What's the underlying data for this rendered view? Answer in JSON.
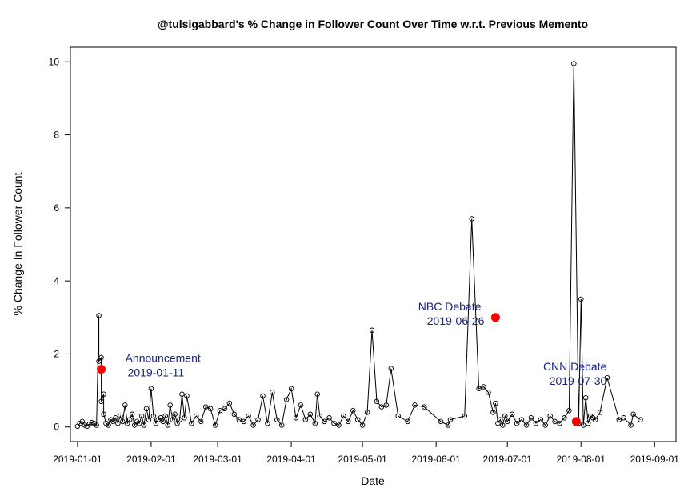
{
  "chart_data": {
    "type": "scatter",
    "title": "@tulsigabbard's % Change in Follower Count Over Time w.r.t. Previous Memento",
    "xlabel": "Date",
    "ylabel": "% Change In Follower Count",
    "x_ticks": [
      "2019-01-01",
      "2019-02-01",
      "2019-03-01",
      "2019-04-01",
      "2019-05-01",
      "2019-06-01",
      "2019-07-01",
      "2019-08-01",
      "2019-09-01"
    ],
    "y_ticks": [
      0,
      2,
      4,
      6,
      8,
      10
    ],
    "xlim": [
      "2018-12-29",
      "2019-09-10"
    ],
    "ylim": [
      -0.4,
      10.4
    ],
    "grid": false,
    "line_color": "#000000",
    "marker": "open-circle",
    "series": [
      {
        "x": [
          "2019-01-01",
          "2019-01-02",
          "2019-01-03",
          "2019-01-04",
          "2019-01-05",
          "2019-01-06",
          "2019-01-07",
          "2019-01-08",
          "2019-01-09",
          "2019-01-10",
          "2019-01-10",
          "2019-01-11",
          "2019-01-11",
          "2019-01-12",
          "2019-01-12",
          "2019-01-13",
          "2019-01-14",
          "2019-01-15",
          "2019-01-16",
          "2019-01-17",
          "2019-01-18",
          "2019-01-19",
          "2019-01-20",
          "2019-01-21",
          "2019-01-22",
          "2019-01-23",
          "2019-01-24",
          "2019-01-25",
          "2019-01-26",
          "2019-01-27",
          "2019-01-28",
          "2019-01-29",
          "2019-01-30",
          "2019-01-31",
          "2019-02-01",
          "2019-02-02",
          "2019-02-03",
          "2019-02-04",
          "2019-02-05",
          "2019-02-06",
          "2019-02-07",
          "2019-02-08",
          "2019-02-09",
          "2019-02-10",
          "2019-02-11",
          "2019-02-12",
          "2019-02-13",
          "2019-02-14",
          "2019-02-15",
          "2019-02-16",
          "2019-02-18",
          "2019-02-20",
          "2019-02-22",
          "2019-02-24",
          "2019-02-26",
          "2019-02-28",
          "2019-03-02",
          "2019-03-04",
          "2019-03-06",
          "2019-03-08",
          "2019-03-10",
          "2019-03-12",
          "2019-03-14",
          "2019-03-16",
          "2019-03-18",
          "2019-03-20",
          "2019-03-22",
          "2019-03-24",
          "2019-03-26",
          "2019-03-28",
          "2019-03-30",
          "2019-04-01",
          "2019-04-03",
          "2019-04-05",
          "2019-04-07",
          "2019-04-09",
          "2019-04-11",
          "2019-04-12",
          "2019-04-13",
          "2019-04-15",
          "2019-04-17",
          "2019-04-19",
          "2019-04-21",
          "2019-04-23",
          "2019-04-25",
          "2019-04-27",
          "2019-04-29",
          "2019-05-01",
          "2019-05-03",
          "2019-05-05",
          "2019-05-07",
          "2019-05-09",
          "2019-05-11",
          "2019-05-13",
          "2019-05-16",
          "2019-05-20",
          "2019-05-23",
          "2019-05-27",
          "2019-06-03",
          "2019-06-06",
          "2019-06-07",
          "2019-06-13",
          "2019-06-16",
          "2019-06-19",
          "2019-06-21",
          "2019-06-23",
          "2019-06-25",
          "2019-06-26",
          "2019-06-27",
          "2019-06-28",
          "2019-06-29",
          "2019-06-30",
          "2019-07-01",
          "2019-07-03",
          "2019-07-05",
          "2019-07-07",
          "2019-07-09",
          "2019-07-11",
          "2019-07-13",
          "2019-07-15",
          "2019-07-17",
          "2019-07-19",
          "2019-07-21",
          "2019-07-23",
          "2019-07-25",
          "2019-07-27",
          "2019-07-29",
          "2019-07-31",
          "2019-08-01",
          "2019-08-02",
          "2019-08-03",
          "2019-08-04",
          "2019-08-05",
          "2019-08-06",
          "2019-08-07",
          "2019-08-09",
          "2019-08-12",
          "2019-08-17",
          "2019-08-19",
          "2019-08-22",
          "2019-08-23",
          "2019-08-26"
        ],
        "y": [
          0.02,
          0.1,
          0.15,
          0.05,
          0.02,
          0.08,
          0.12,
          0.1,
          0.05,
          3.05,
          1.8,
          1.9,
          0.7,
          0.9,
          0.35,
          0.1,
          0.05,
          0.2,
          0.15,
          0.25,
          0.1,
          0.3,
          0.15,
          0.6,
          0.1,
          0.2,
          0.35,
          0.05,
          0.15,
          0.1,
          0.3,
          0.05,
          0.5,
          0.2,
          1.05,
          0.3,
          0.1,
          0.2,
          0.25,
          0.15,
          0.3,
          0.05,
          0.6,
          0.2,
          0.35,
          0.1,
          0.2,
          0.9,
          0.25,
          0.85,
          0.1,
          0.3,
          0.15,
          0.55,
          0.5,
          0.05,
          0.45,
          0.5,
          0.65,
          0.35,
          0.2,
          0.15,
          0.3,
          0.05,
          0.2,
          0.85,
          0.1,
          0.95,
          0.2,
          0.05,
          0.75,
          1.05,
          0.25,
          0.6,
          0.2,
          0.35,
          0.1,
          0.9,
          0.3,
          0.15,
          0.25,
          0.1,
          0.05,
          0.3,
          0.15,
          0.45,
          0.2,
          0.05,
          0.4,
          2.65,
          0.7,
          0.55,
          0.6,
          1.6,
          0.3,
          0.15,
          0.6,
          0.55,
          0.15,
          0.05,
          0.2,
          0.3,
          5.7,
          1.05,
          1.1,
          0.95,
          0.4,
          0.65,
          0.1,
          0.2,
          0.05,
          0.3,
          0.15,
          0.35,
          0.1,
          0.2,
          0.05,
          0.25,
          0.1,
          0.2,
          0.05,
          0.3,
          0.15,
          0.1,
          0.25,
          0.45,
          9.95,
          0.1,
          3.5,
          0.05,
          0.8,
          0.1,
          0.3,
          0.25,
          0.2,
          0.4,
          1.35,
          0.2,
          0.25,
          0.05,
          0.35,
          0.2
        ]
      }
    ],
    "highlights": [
      {
        "date": "2019-01-11",
        "value": 1.58,
        "label": "Announcement",
        "date_label": "2019-01-11",
        "color": "#ff0000",
        "text_color": "#1a237e"
      },
      {
        "date": "2019-06-26",
        "value": 3.0,
        "label": "NBC Debate",
        "date_label": "2019-06-26",
        "color": "#ff0000",
        "text_color": "#1a237e"
      },
      {
        "date": "2019-07-30",
        "value": 0.15,
        "label": "CNN Debate",
        "date_label": "2019-07-30",
        "color": "#ff0000",
        "text_color": "#1a237e"
      }
    ]
  }
}
